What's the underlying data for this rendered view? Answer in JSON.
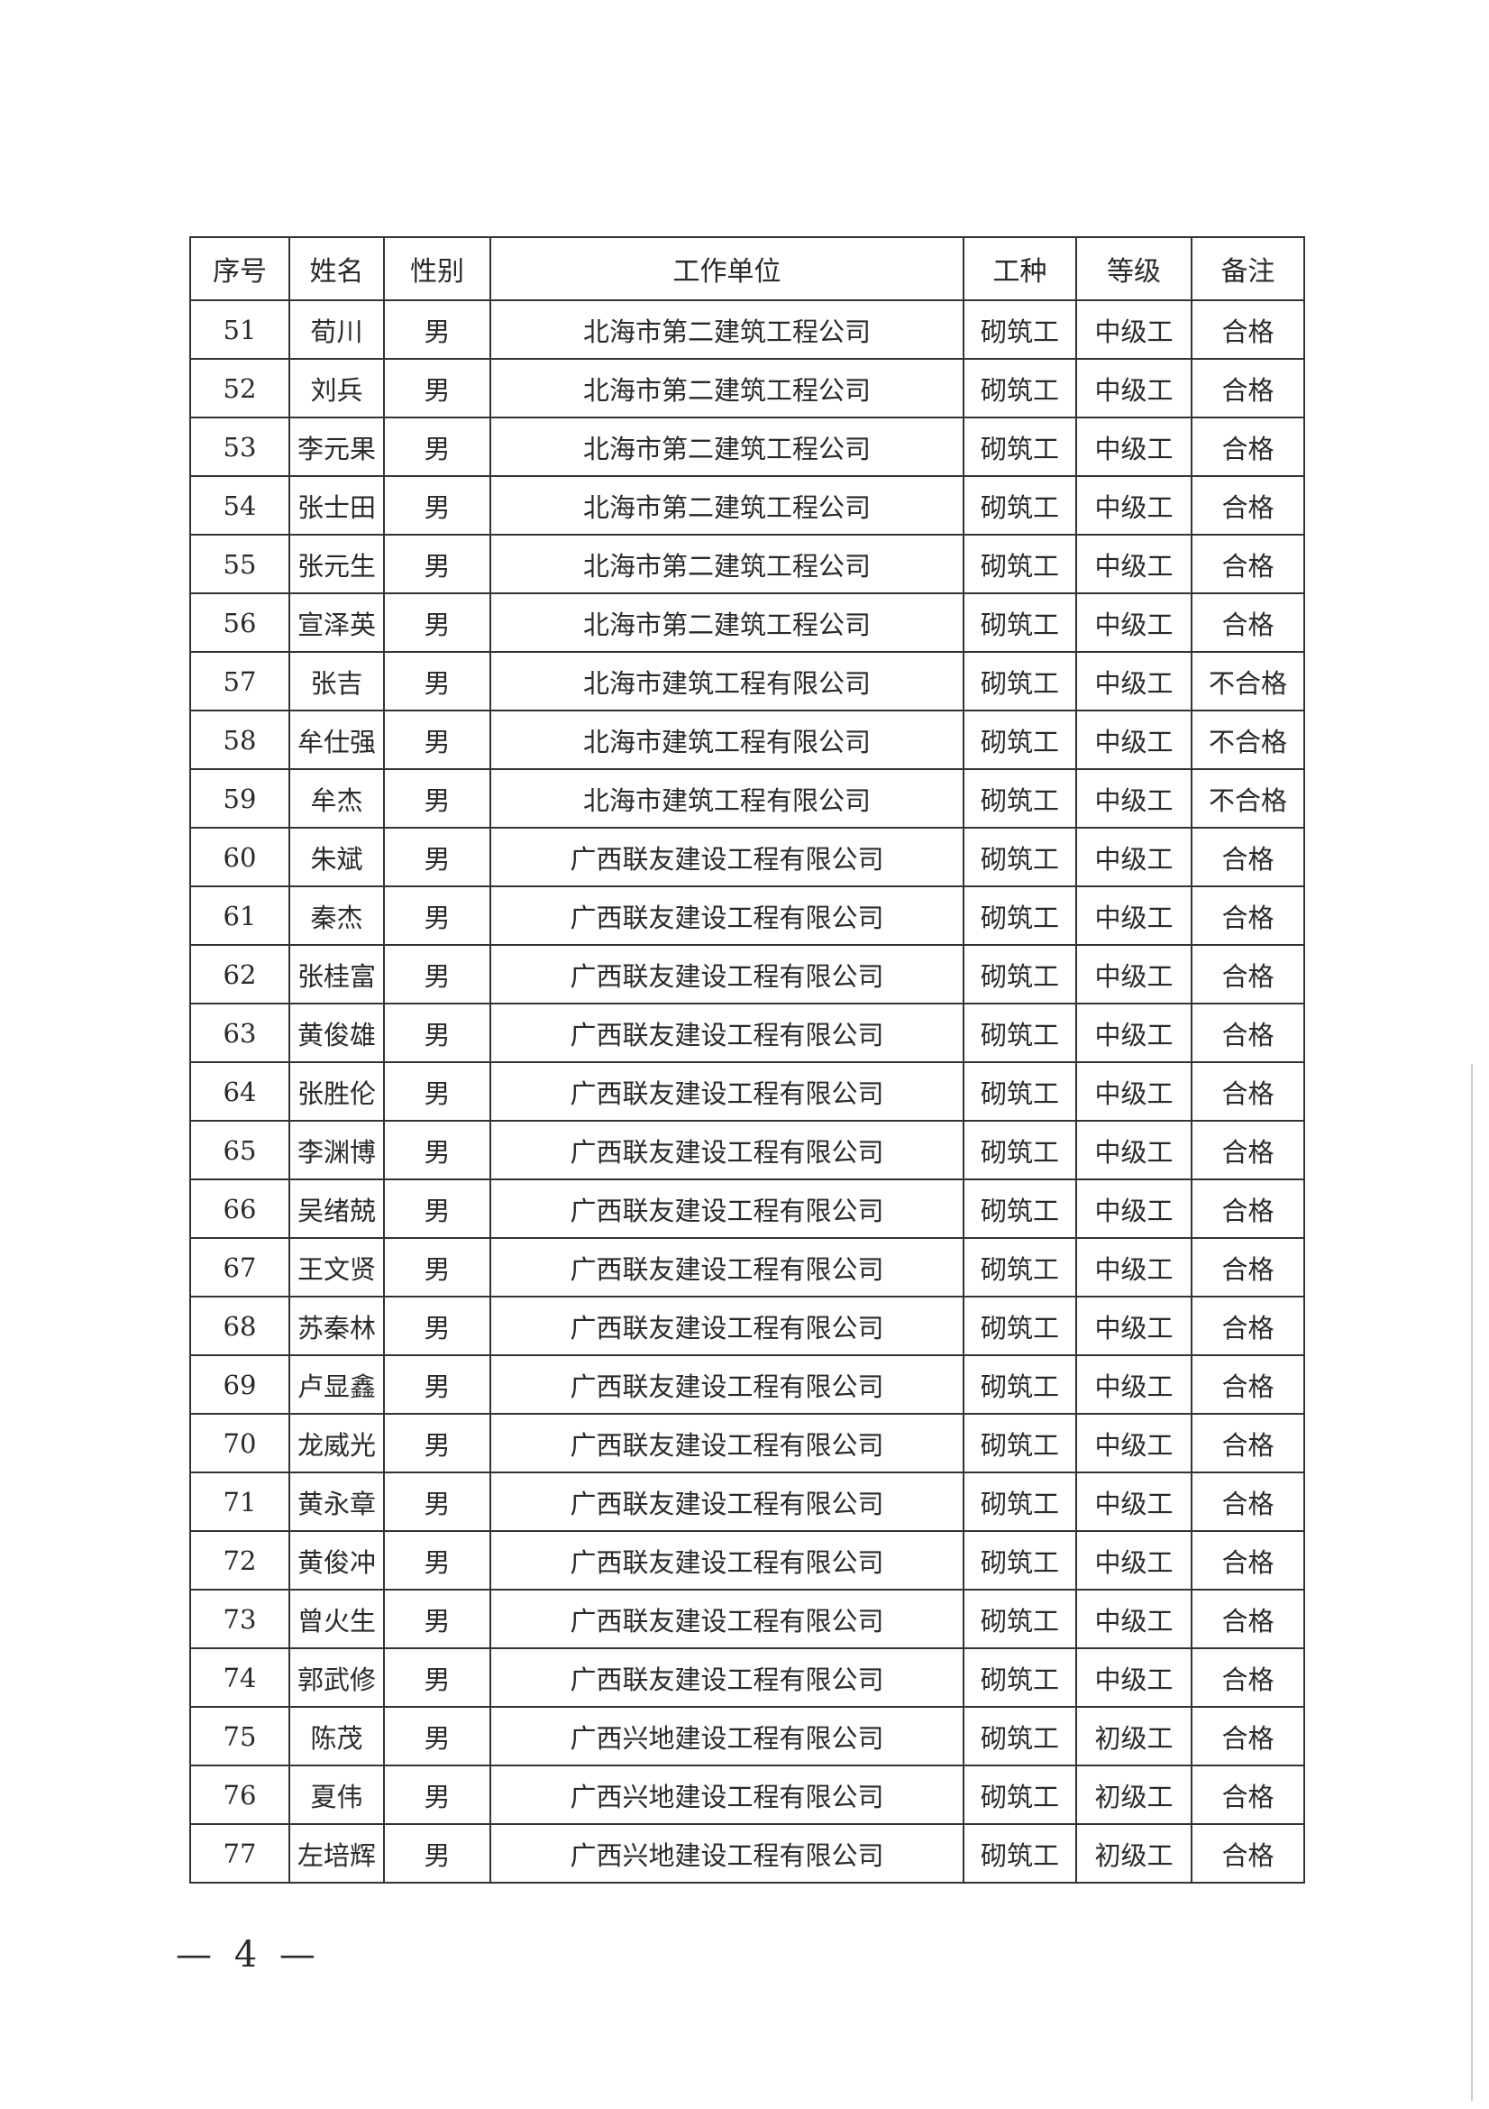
{
  "table": {
    "headers": [
      "序号",
      "姓名",
      "性别",
      "工作单位",
      "工种",
      "等级",
      "备注"
    ],
    "rows": [
      [
        "51",
        "荀川",
        "男",
        "北海市第二建筑工程公司",
        "砌筑工",
        "中级工",
        "合格"
      ],
      [
        "52",
        "刘兵",
        "男",
        "北海市第二建筑工程公司",
        "砌筑工",
        "中级工",
        "合格"
      ],
      [
        "53",
        "李元果",
        "男",
        "北海市第二建筑工程公司",
        "砌筑工",
        "中级工",
        "合格"
      ],
      [
        "54",
        "张士田",
        "男",
        "北海市第二建筑工程公司",
        "砌筑工",
        "中级工",
        "合格"
      ],
      [
        "55",
        "张元生",
        "男",
        "北海市第二建筑工程公司",
        "砌筑工",
        "中级工",
        "合格"
      ],
      [
        "56",
        "宣泽英",
        "男",
        "北海市第二建筑工程公司",
        "砌筑工",
        "中级工",
        "合格"
      ],
      [
        "57",
        "张吉",
        "男",
        "北海市建筑工程有限公司",
        "砌筑工",
        "中级工",
        "不合格"
      ],
      [
        "58",
        "牟仕强",
        "男",
        "北海市建筑工程有限公司",
        "砌筑工",
        "中级工",
        "不合格"
      ],
      [
        "59",
        "牟杰",
        "男",
        "北海市建筑工程有限公司",
        "砌筑工",
        "中级工",
        "不合格"
      ],
      [
        "60",
        "朱斌",
        "男",
        "广西联友建设工程有限公司",
        "砌筑工",
        "中级工",
        "合格"
      ],
      [
        "61",
        "秦杰",
        "男",
        "广西联友建设工程有限公司",
        "砌筑工",
        "中级工",
        "合格"
      ],
      [
        "62",
        "张桂富",
        "男",
        "广西联友建设工程有限公司",
        "砌筑工",
        "中级工",
        "合格"
      ],
      [
        "63",
        "黄俊雄",
        "男",
        "广西联友建设工程有限公司",
        "砌筑工",
        "中级工",
        "合格"
      ],
      [
        "64",
        "张胜伦",
        "男",
        "广西联友建设工程有限公司",
        "砌筑工",
        "中级工",
        "合格"
      ],
      [
        "65",
        "李渊博",
        "男",
        "广西联友建设工程有限公司",
        "砌筑工",
        "中级工",
        "合格"
      ],
      [
        "66",
        "吴绪兢",
        "男",
        "广西联友建设工程有限公司",
        "砌筑工",
        "中级工",
        "合格"
      ],
      [
        "67",
        "王文贤",
        "男",
        "广西联友建设工程有限公司",
        "砌筑工",
        "中级工",
        "合格"
      ],
      [
        "68",
        "苏秦林",
        "男",
        "广西联友建设工程有限公司",
        "砌筑工",
        "中级工",
        "合格"
      ],
      [
        "69",
        "卢显鑫",
        "男",
        "广西联友建设工程有限公司",
        "砌筑工",
        "中级工",
        "合格"
      ],
      [
        "70",
        "龙威光",
        "男",
        "广西联友建设工程有限公司",
        "砌筑工",
        "中级工",
        "合格"
      ],
      [
        "71",
        "黄永章",
        "男",
        "广西联友建设工程有限公司",
        "砌筑工",
        "中级工",
        "合格"
      ],
      [
        "72",
        "黄俊冲",
        "男",
        "广西联友建设工程有限公司",
        "砌筑工",
        "中级工",
        "合格"
      ],
      [
        "73",
        "曾火生",
        "男",
        "广西联友建设工程有限公司",
        "砌筑工",
        "中级工",
        "合格"
      ],
      [
        "74",
        "郭武修",
        "男",
        "广西联友建设工程有限公司",
        "砌筑工",
        "中级工",
        "合格"
      ],
      [
        "75",
        "陈茂",
        "男",
        "广西兴地建设工程有限公司",
        "砌筑工",
        "初级工",
        "合格"
      ],
      [
        "76",
        "夏伟",
        "男",
        "广西兴地建设工程有限公司",
        "砌筑工",
        "初级工",
        "合格"
      ],
      [
        "77",
        "左培辉",
        "男",
        "广西兴地建设工程有限公司",
        "砌筑工",
        "初级工",
        "合格"
      ]
    ]
  },
  "footer": {
    "page_number": "— 4 —"
  }
}
